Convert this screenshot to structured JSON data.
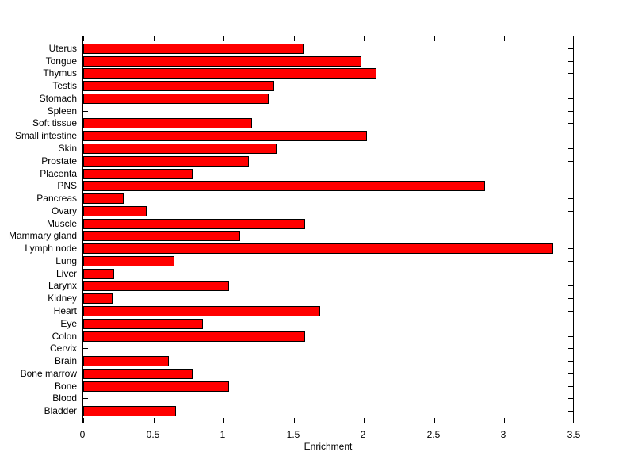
{
  "chart_data": {
    "type": "bar",
    "orientation": "horizontal",
    "title": "",
    "xlabel": "Enrichment",
    "ylabel": "",
    "xlim": [
      0,
      3.5
    ],
    "xticks": [
      0,
      0.5,
      1,
      1.5,
      2,
      2.5,
      3,
      3.5
    ],
    "xtick_labels": [
      "0",
      "0.5",
      "1",
      "1.5",
      "2",
      "2.5",
      "3",
      "3.5"
    ],
    "categories": [
      "Uterus",
      "Tongue",
      "Thymus",
      "Testis",
      "Stomach",
      "Spleen",
      "Soft tissue",
      "Small intestine",
      "Skin",
      "Prostate",
      "Placenta",
      "PNS",
      "Pancreas",
      "Ovary",
      "Muscle",
      "Mammary gland",
      "Lymph node",
      "Lung",
      "Liver",
      "Larynx",
      "Kidney",
      "Heart",
      "Eye",
      "Colon",
      "Cervix",
      "Brain",
      "Bone marrow",
      "Bone",
      "Blood",
      "Bladder"
    ],
    "values": [
      1.57,
      1.98,
      2.09,
      1.36,
      1.32,
      0,
      1.2,
      2.02,
      1.38,
      1.18,
      0.78,
      2.86,
      0.29,
      0.45,
      1.58,
      1.12,
      3.35,
      0.65,
      0.22,
      1.04,
      0.21,
      1.69,
      0.85,
      1.58,
      0,
      0.61,
      0.78,
      1.04,
      0,
      0.66
    ],
    "bar_color": "#ff0000",
    "bar_edge_color": "#000000",
    "frame_color": "#000000",
    "background_color": "#ffffff",
    "grid": false,
    "tick_direction": "in"
  }
}
